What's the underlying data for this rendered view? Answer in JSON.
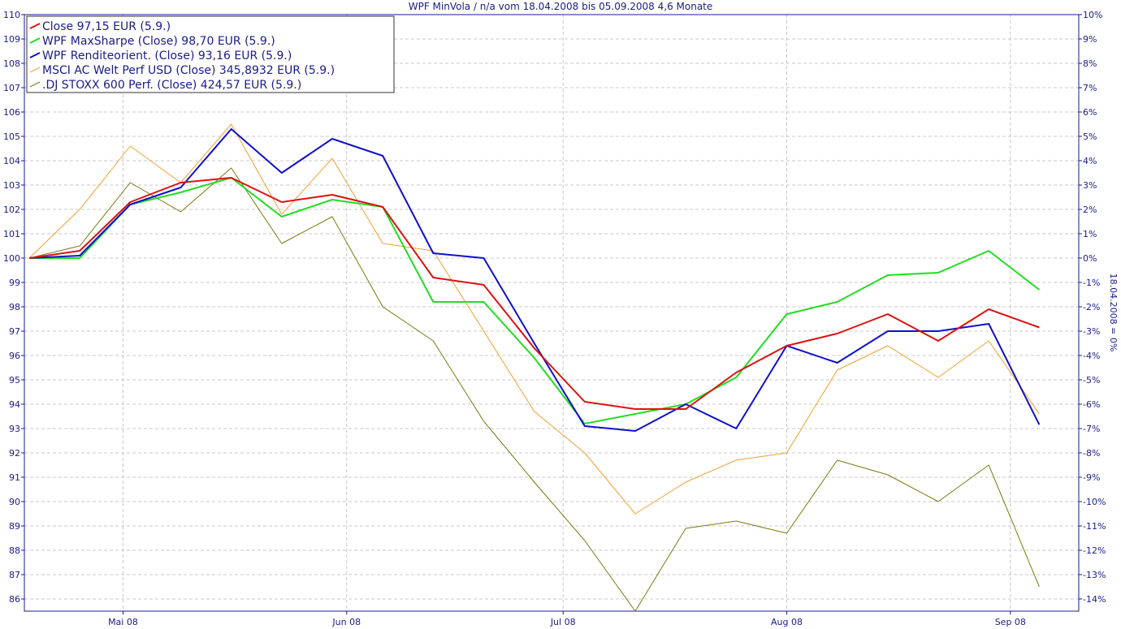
{
  "chart_data": {
    "type": "line",
    "title": "WPF MinVola / n/a vom 18.04.2008 bis 05.09.2008 4,6 Monate",
    "y_left": {
      "ylim": [
        85.5,
        110
      ],
      "ticks": [
        86,
        87,
        88,
        89,
        90,
        91,
        92,
        93,
        94,
        95,
        96,
        97,
        98,
        99,
        100,
        101,
        102,
        103,
        104,
        105,
        106,
        107,
        108,
        109,
        110
      ]
    },
    "y_right": {
      "label": "18.04.2008 = 0%",
      "ticks": [
        "10%",
        "9%",
        "8%",
        "7%",
        "6%",
        "5%",
        "4%",
        "3%",
        "2%",
        "1%",
        "0%",
        "-1%",
        "-2%",
        "-3%",
        "-4%",
        "-5%",
        "-6%",
        "-7%",
        "-8%",
        "-9%",
        "-10%",
        "-11%",
        "-12%",
        "-13%",
        "-14%"
      ]
    },
    "x_ticks": [
      {
        "label": "Mai 08",
        "date": "2008-05-01"
      },
      {
        "label": "Jun 08",
        "date": "2008-06-01"
      },
      {
        "label": "Jul 08",
        "date": "2008-07-01"
      },
      {
        "label": "Aug 08",
        "date": "2008-08-01"
      },
      {
        "label": "Sep 08",
        "date": "2008-09-01"
      }
    ],
    "x_range": [
      "2008-04-18",
      "2008-09-08"
    ],
    "x": [
      "2008-04-18",
      "2008-04-25",
      "2008-05-02",
      "2008-05-09",
      "2008-05-16",
      "2008-05-23",
      "2008-05-30",
      "2008-06-06",
      "2008-06-13",
      "2008-06-20",
      "2008-06-27",
      "2008-07-04",
      "2008-07-11",
      "2008-07-18",
      "2008-07-25",
      "2008-08-01",
      "2008-08-08",
      "2008-08-15",
      "2008-08-22",
      "2008-08-29",
      "2008-09-05"
    ],
    "legend_placement": "top-left",
    "grid": true,
    "series": [
      {
        "name": "MSCI AC Welt Perf USD (Close) 345,8932 EUR (5.9.)",
        "color": "#f0a030",
        "width": 1,
        "values": [
          100,
          102.0,
          104.6,
          103.1,
          105.5,
          101.8,
          104.1,
          100.6,
          100.3,
          97.0,
          93.7,
          92.0,
          89.5,
          90.8,
          91.7,
          92.0,
          95.4,
          96.4,
          95.1,
          96.6,
          93.6
        ]
      },
      {
        "name": ".DJ STOXX 600 Perf. (Close) 424,57 EUR (5.9.)",
        "color": "#7a7a10",
        "width": 1,
        "values": [
          100,
          100.5,
          103.1,
          101.9,
          103.7,
          100.6,
          101.7,
          98.0,
          96.6,
          93.3,
          90.8,
          88.4,
          85.5,
          88.9,
          89.2,
          88.7,
          91.7,
          91.1,
          90.0,
          91.5,
          86.5
        ]
      },
      {
        "name": "WPF MaxSharpe (Close) 98,70 EUR (5.9.)",
        "color": "#22dd22",
        "width": 2,
        "values": [
          100,
          100.0,
          102.2,
          102.7,
          103.3,
          101.7,
          102.4,
          102.1,
          98.2,
          98.2,
          95.9,
          93.2,
          93.6,
          94.0,
          95.1,
          97.7,
          98.2,
          99.3,
          99.4,
          100.3,
          98.7
        ]
      },
      {
        "name": "WPF Renditeorient. (Close) 93,16 EUR (5.9.)",
        "color": "#1010cc",
        "width": 2,
        "values": [
          100,
          100.1,
          102.2,
          102.9,
          105.3,
          103.5,
          104.9,
          104.2,
          100.2,
          100.0,
          96.5,
          93.1,
          92.9,
          94.0,
          93.0,
          96.4,
          95.7,
          97.0,
          97.0,
          97.3,
          93.16
        ]
      },
      {
        "name": "Close 97,15 EUR (5.9.)",
        "color": "#dd1111",
        "width": 2,
        "values": [
          100,
          100.3,
          102.3,
          103.1,
          103.3,
          102.3,
          102.6,
          102.1,
          99.2,
          98.9,
          96.3,
          94.1,
          93.8,
          93.8,
          95.3,
          96.4,
          96.9,
          97.7,
          96.6,
          97.9,
          97.15
        ]
      }
    ],
    "legend_order": [
      4,
      2,
      3,
      0,
      1
    ]
  }
}
